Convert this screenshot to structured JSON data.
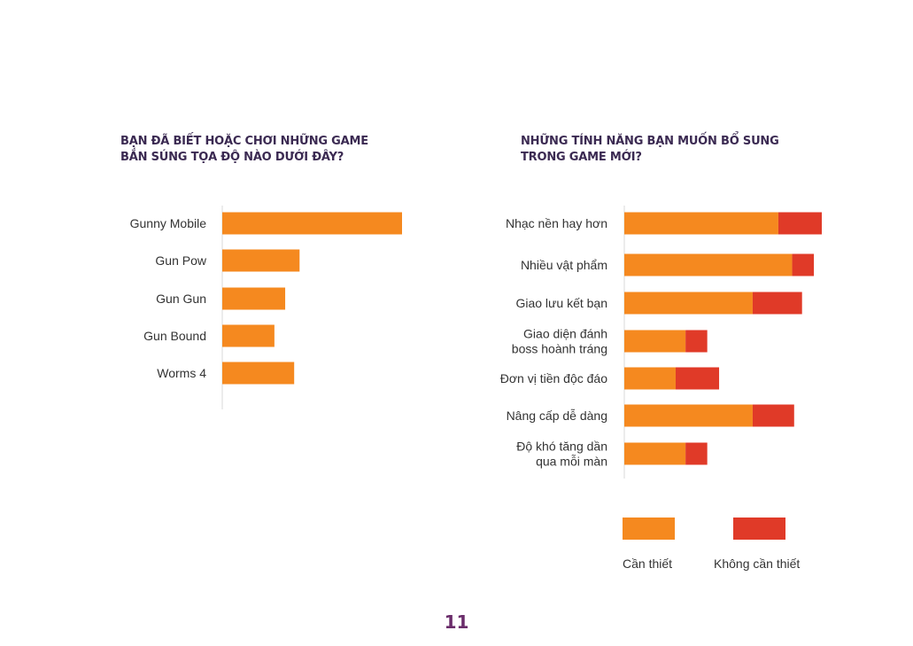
{
  "colors": {
    "primary": "#f5891f",
    "secondary": "#e03a28",
    "axis": "#d9d9d9",
    "title": "#3b2a52",
    "page_number": "#6b2d6b"
  },
  "chart_data": [
    {
      "type": "bar",
      "orientation": "horizontal",
      "title_lines": [
        "BẠN ĐÃ BIẾT HOẶC CHƠI NHỮNG GAME",
        "BẮN SÚNG TỌA ĐỘ NÀO DƯỚI ĐÂY?"
      ],
      "categories": [
        [
          "Gunny Mobile"
        ],
        [
          "Gun Pow"
        ],
        [
          "Gun Gun"
        ],
        [
          "Gun Bound"
        ],
        [
          "Worms 4"
        ]
      ],
      "values": [
        100,
        43,
        35,
        29,
        40
      ],
      "xlim": [
        0,
        100
      ]
    },
    {
      "type": "bar",
      "orientation": "horizontal",
      "stacked": true,
      "title_lines": [
        "NHỮNG TÍNH NĂNG BẠN MUỐN BỔ SUNG",
        "TRONG GAME MỚI?"
      ],
      "categories": [
        [
          "Nhạc nền hay hơn"
        ],
        [
          "Nhiều vật phẩm"
        ],
        [
          "Giao lưu kết bạn"
        ],
        [
          "Giao diện đánh",
          "boss hoành tráng"
        ],
        [
          "Đơn vị tiền độc đáo"
        ],
        [
          "Nâng cấp dễ dàng"
        ],
        [
          "Độ khó tăng dần",
          "qua mỗi màn"
        ]
      ],
      "series": [
        {
          "name": "Cần thiết",
          "values": [
            78,
            85,
            65,
            31,
            26,
            65,
            31
          ]
        },
        {
          "name": "Không cần thiết",
          "values": [
            22,
            11,
            25,
            11,
            22,
            21,
            11
          ]
        }
      ],
      "xlim": [
        0,
        100
      ],
      "legend": "bottom"
    }
  ],
  "page_number": "11"
}
